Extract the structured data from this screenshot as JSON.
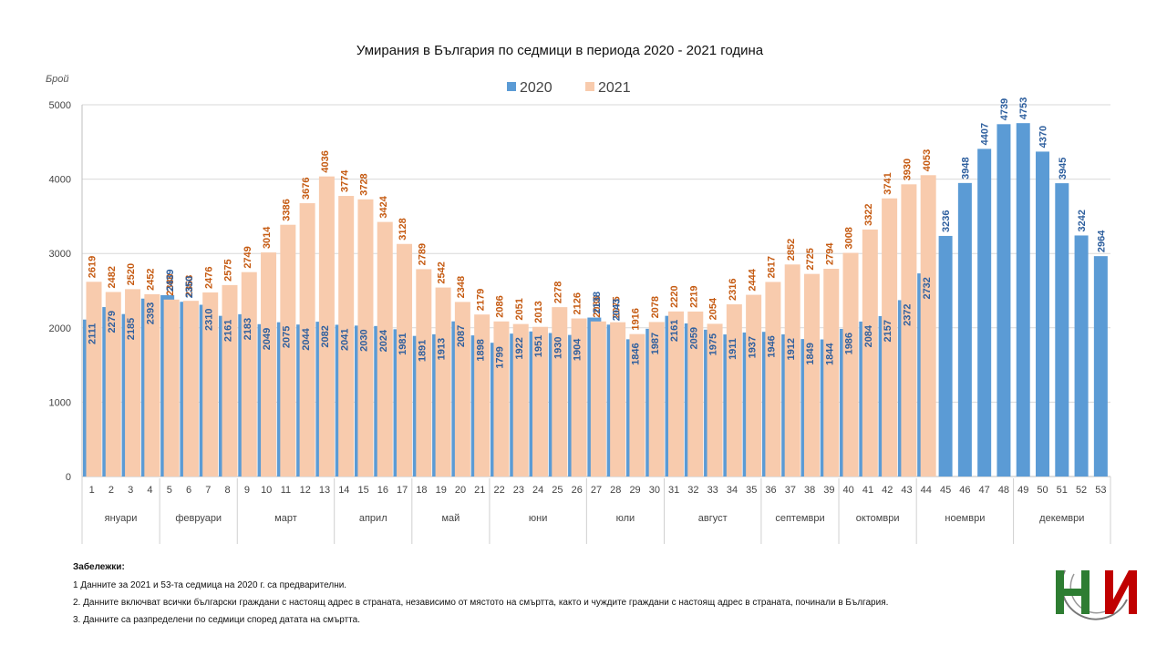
{
  "chart_data": {
    "type": "bar",
    "title": "Умирания в България по седмици в периода 2020 - 2021 година",
    "ylabel": "Брой",
    "ylim": [
      0,
      5000
    ],
    "yticks": [
      "0",
      "1000",
      "2000",
      "3000",
      "4000",
      "5000"
    ],
    "categories": [
      "1",
      "2",
      "3",
      "4",
      "5",
      "6",
      "7",
      "8",
      "9",
      "10",
      "11",
      "12",
      "13",
      "14",
      "15",
      "16",
      "17",
      "18",
      "19",
      "20",
      "21",
      "22",
      "23",
      "24",
      "25",
      "26",
      "27",
      "28",
      "29",
      "30",
      "31",
      "32",
      "33",
      "34",
      "35",
      "36",
      "37",
      "38",
      "39",
      "40",
      "41",
      "42",
      "43",
      "44",
      "45",
      "46",
      "47",
      "48",
      "49",
      "50",
      "51",
      "52",
      "53"
    ],
    "months": [
      {
        "label": "януари",
        "start": 1,
        "end": 4
      },
      {
        "label": "февруари",
        "start": 5,
        "end": 8
      },
      {
        "label": "март",
        "start": 9,
        "end": 13
      },
      {
        "label": "април",
        "start": 14,
        "end": 17
      },
      {
        "label": "май",
        "start": 18,
        "end": 21
      },
      {
        "label": "юни",
        "start": 22,
        "end": 26
      },
      {
        "label": "юли",
        "start": 27,
        "end": 30
      },
      {
        "label": "август",
        "start": 31,
        "end": 35
      },
      {
        "label": "септември",
        "start": 36,
        "end": 39
      },
      {
        "label": "октомври",
        "start": 40,
        "end": 43
      },
      {
        "label": "ноември",
        "start": 44,
        "end": 48
      },
      {
        "label": "декември",
        "start": 49,
        "end": 53
      }
    ],
    "series": [
      {
        "name": "2020",
        "color": "#5b9bd5",
        "labelColor": "#2e5f9e",
        "values": [
          2111,
          2279,
          2185,
          2393,
          2439,
          2350,
          2310,
          2161,
          2183,
          2049,
          2075,
          2044,
          2082,
          2041,
          2030,
          2024,
          1981,
          1891,
          1913,
          2087,
          1898,
          1799,
          1922,
          1951,
          1930,
          1904,
          2138,
          2043,
          1846,
          1987,
          2161,
          2059,
          1975,
          1911,
          1937,
          1946,
          1912,
          1849,
          1844,
          1986,
          2084,
          2157,
          2372,
          2732,
          3236,
          3948,
          4407,
          4739,
          4753,
          4370,
          3945,
          3242,
          2964
        ]
      },
      {
        "name": "2021",
        "color": "#f8cbad",
        "labelColor": "#c55a11",
        "values": [
          2619,
          2482,
          2520,
          2452,
          2380,
          2363,
          2476,
          2575,
          2749,
          3014,
          3386,
          3676,
          4036,
          3774,
          3728,
          3424,
          3128,
          2789,
          2542,
          2348,
          2179,
          2086,
          2051,
          2013,
          2278,
          2126,
          2086,
          2075,
          1916,
          2078,
          2220,
          2219,
          2054,
          2316,
          2444,
          2617,
          2852,
          2725,
          2794,
          3008,
          3322,
          3741,
          3930,
          4053,
          null,
          null,
          null,
          null,
          null,
          null,
          null,
          null,
          null
        ]
      }
    ],
    "legend_position": "top-center",
    "grid": true
  },
  "notes": {
    "heading": "Забележки:",
    "items": [
      "1   Данните за 2021 и 53-та седмица на 2020 г. са предварителни.",
      "2. Данните включват всички български граждани с настоящ адрес в страната, независимо от мястото на смъртта, както и чуждите граждани с настоящ адрес в страната, починали в България.",
      "3. Данните са разпределени по седмици според  датата на смъртта."
    ]
  },
  "logo": {
    "text": "НСИ",
    "colors": [
      "#c00000",
      "#2e7d32",
      "#555555"
    ]
  }
}
